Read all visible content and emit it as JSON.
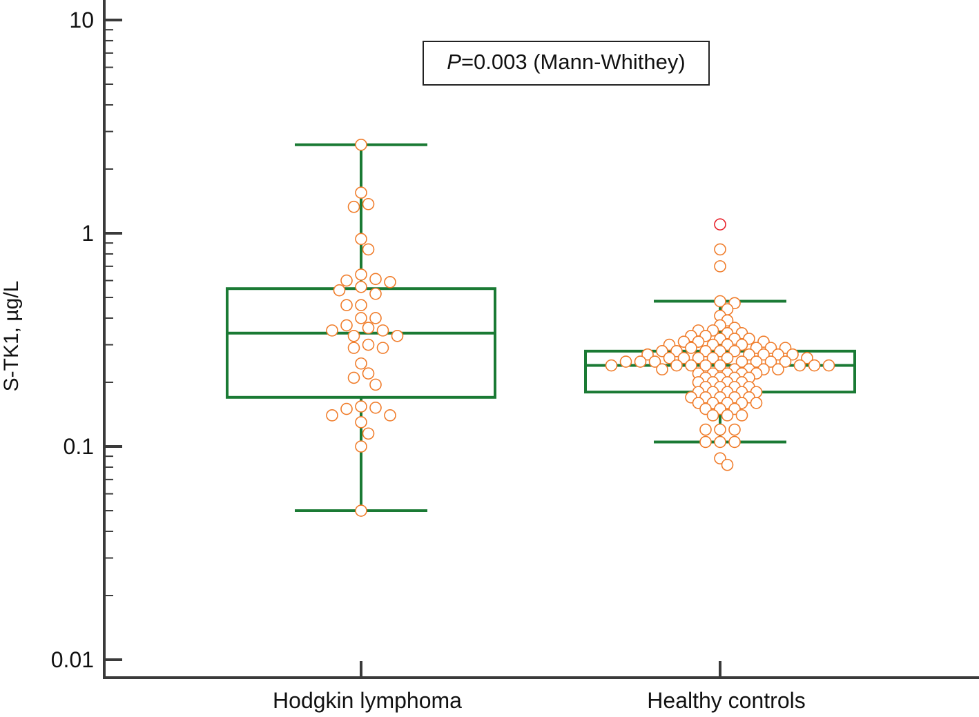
{
  "chart_data": {
    "type": "box-dotplot",
    "ylabel": "S-TK1, µg/L",
    "yscale": "log",
    "ylim": [
      0.008,
      12
    ],
    "yticks": [
      {
        "value": 10,
        "label": "10"
      },
      {
        "value": 1,
        "label": "1"
      },
      {
        "value": 0.1,
        "label": "0.1"
      },
      {
        "value": 0.01,
        "label": "0.01"
      }
    ],
    "grid": false,
    "annotation": {
      "italic": "P",
      "text": "=0.003 (Mann-Whithey)"
    },
    "colors": {
      "box": "#1a7a34",
      "point": "#f07c2a",
      "outlier": "#e8202a",
      "axis": "#3a3a3a"
    },
    "categories": [
      "Hodgkin lymphoma",
      "Healthy controls"
    ],
    "series": [
      {
        "category": "Hodgkin lymphoma",
        "whisker_high": 2.6,
        "q3": 0.55,
        "median": 0.34,
        "q1": 0.17,
        "whisker_low": 0.05,
        "values": [
          2.6,
          1.55,
          1.37,
          1.33,
          0.94,
          0.84,
          0.64,
          0.61,
          0.6,
          0.59,
          0.56,
          0.54,
          0.52,
          0.46,
          0.46,
          0.4,
          0.4,
          0.37,
          0.36,
          0.35,
          0.35,
          0.33,
          0.33,
          0.3,
          0.29,
          0.29,
          0.245,
          0.22,
          0.21,
          0.195,
          0.154,
          0.152,
          0.15,
          0.14,
          0.14,
          0.13,
          0.115,
          0.1,
          0.05
        ],
        "outliers": []
      },
      {
        "category": "Healthy controls",
        "whisker_high": 0.48,
        "q3": 0.28,
        "median": 0.24,
        "q1": 0.18,
        "whisker_low": 0.105,
        "values": [
          0.84,
          0.7,
          0.48,
          0.47,
          0.44,
          0.41,
          0.39,
          0.37,
          0.36,
          0.35,
          0.35,
          0.34,
          0.34,
          0.33,
          0.33,
          0.32,
          0.32,
          0.32,
          0.31,
          0.31,
          0.31,
          0.3,
          0.3,
          0.3,
          0.3,
          0.29,
          0.29,
          0.29,
          0.29,
          0.28,
          0.28,
          0.28,
          0.28,
          0.28,
          0.27,
          0.27,
          0.27,
          0.27,
          0.27,
          0.26,
          0.26,
          0.26,
          0.26,
          0.26,
          0.26,
          0.25,
          0.25,
          0.25,
          0.25,
          0.25,
          0.25,
          0.25,
          0.24,
          0.24,
          0.24,
          0.24,
          0.24,
          0.24,
          0.24,
          0.24,
          0.23,
          0.23,
          0.23,
          0.23,
          0.23,
          0.22,
          0.22,
          0.22,
          0.22,
          0.22,
          0.21,
          0.21,
          0.21,
          0.21,
          0.2,
          0.2,
          0.2,
          0.2,
          0.19,
          0.19,
          0.19,
          0.19,
          0.18,
          0.18,
          0.18,
          0.18,
          0.18,
          0.17,
          0.17,
          0.17,
          0.17,
          0.17,
          0.16,
          0.16,
          0.16,
          0.16,
          0.16,
          0.15,
          0.15,
          0.15,
          0.14,
          0.14,
          0.14,
          0.12,
          0.12,
          0.12,
          0.105,
          0.105,
          0.105,
          0.088,
          0.082
        ],
        "outliers": [
          1.1
        ]
      }
    ]
  }
}
